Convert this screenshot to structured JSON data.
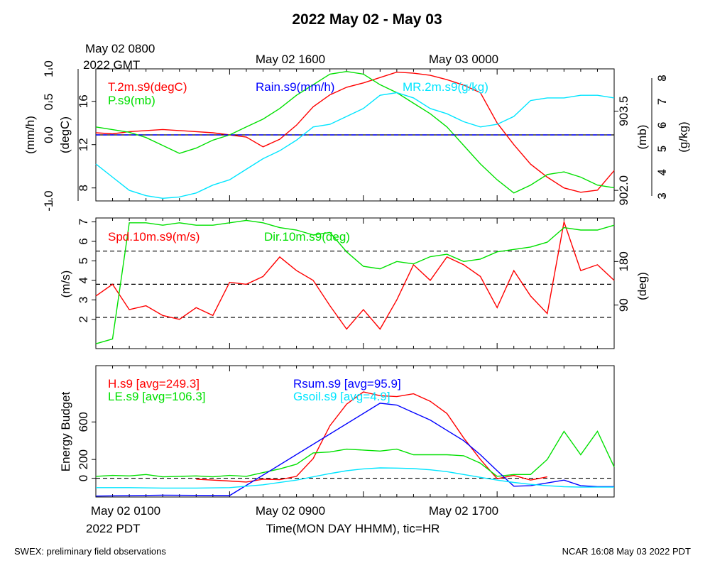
{
  "title": "2022 May 02 - May 03",
  "top_time_labels": {
    "utc_start_line1": "May 02 0800",
    "utc_start_line2": "2022 GMT",
    "utc_mid": "May 02 1600",
    "utc_end": "May 03 0000"
  },
  "bottom_time_labels": {
    "pdt_start": "May 02 0100",
    "pdt_start_line2": "2022 PDT",
    "pdt_mid": "May 02 0900",
    "pdt_end": "May 02 1700",
    "xlabel": "Time(MON DAY HHMM), tic=HR"
  },
  "footer": {
    "left": "SWEX: preliminary field observations",
    "right": "NCAR 16:08 May 03 2022 PDT"
  },
  "colors": {
    "red": "#ff0000",
    "green": "#00e000",
    "blue": "#0000ff",
    "cyan": "#00e5ff",
    "black": "#000000"
  },
  "chart_data": [
    {
      "type": "line",
      "panel": "top",
      "x_unit": "hours since May 02 0100 PDT",
      "xlim": [
        0,
        31
      ],
      "axes": {
        "left_outer": {
          "label": "(mm/h)",
          "ticks": [
            "-1.0",
            "0.0",
            "0.5",
            "1.0"
          ],
          "ylim": [
            -1,
            1
          ]
        },
        "left_inner": {
          "label": "(degC)",
          "ticks": [
            "8",
            "12",
            "16"
          ],
          "ylim": [
            6.8,
            19.0
          ]
        },
        "right_inner": {
          "label": "(mb)",
          "ticks": [
            "902.0",
            "903.5"
          ],
          "ylim": [
            901.8,
            904.3
          ]
        },
        "right_outer": {
          "label": "(g/kg)",
          "ticks": [
            "3",
            "4",
            "5",
            "6",
            "7",
            "8"
          ],
          "ylim": [
            3,
            8
          ]
        }
      },
      "series": [
        {
          "name": "T.2m.s9(degC)",
          "axis": "left_inner",
          "color": "red",
          "x": [
            0,
            1,
            2,
            3,
            4,
            5,
            6,
            7,
            8,
            9,
            10,
            11,
            12,
            13,
            14,
            15,
            16,
            17,
            18,
            19,
            20,
            21,
            22,
            23,
            24,
            25,
            26,
            27,
            28,
            29,
            30,
            31
          ],
          "y": [
            13.1,
            13.0,
            13.2,
            13.3,
            13.4,
            13.3,
            13.2,
            13.1,
            12.9,
            12.7,
            11.8,
            12.5,
            13.8,
            15.5,
            16.6,
            17.3,
            17.7,
            18.2,
            18.7,
            18.6,
            18.4,
            18.0,
            17.5,
            16.8,
            14.0,
            12.0,
            10.2,
            9.0,
            8.0,
            7.6,
            7.8,
            9.6
          ]
        },
        {
          "name": "P.s9(mb)",
          "axis": "right_inner",
          "color": "green",
          "x": [
            0,
            1,
            2,
            3,
            4,
            5,
            6,
            7,
            8,
            9,
            10,
            11,
            12,
            13,
            14,
            15,
            16,
            17,
            18,
            19,
            20,
            21,
            22,
            23,
            24,
            25,
            26,
            27,
            28,
            29,
            30,
            31
          ],
          "y": [
            903.2,
            903.15,
            903.1,
            903.0,
            902.85,
            902.7,
            902.8,
            902.95,
            903.05,
            903.2,
            903.35,
            903.55,
            903.8,
            904.0,
            904.2,
            904.25,
            904.2,
            904.0,
            903.85,
            903.65,
            903.45,
            903.2,
            902.85,
            902.5,
            902.2,
            901.95,
            902.1,
            902.3,
            902.35,
            902.25,
            902.1,
            902.05
          ]
        },
        {
          "name": "Rain.s9(mm/h)",
          "axis": "left_outer",
          "color": "blue",
          "x": [
            0,
            31
          ],
          "y": [
            0.0,
            0.0
          ]
        },
        {
          "name": "MR.2m.s9(g/kg)",
          "axis": "right_outer",
          "color": "cyan",
          "x": [
            0,
            1,
            2,
            3,
            4,
            5,
            6,
            7,
            8,
            9,
            10,
            11,
            12,
            13,
            14,
            15,
            16,
            17,
            18,
            19,
            20,
            21,
            22,
            23,
            24,
            25,
            26,
            27,
            28,
            29,
            30,
            31
          ],
          "y": [
            4.4,
            3.9,
            3.4,
            3.2,
            3.1,
            3.15,
            3.3,
            3.6,
            3.8,
            4.2,
            4.6,
            4.9,
            5.3,
            5.8,
            5.9,
            6.2,
            6.5,
            7.0,
            7.1,
            6.9,
            6.5,
            6.3,
            6.0,
            5.8,
            5.9,
            6.2,
            6.8,
            6.9,
            6.9,
            7.0,
            7.0,
            6.9
          ]
        }
      ]
    },
    {
      "type": "line",
      "panel": "middle",
      "x_unit": "hours since May 02 0100 PDT",
      "xlim": [
        0,
        31
      ],
      "axes": {
        "left": {
          "label": "(m/s)",
          "ticks": [
            "2",
            "3",
            "4",
            "5",
            "6",
            "7"
          ],
          "ylim": [
            0.5,
            7.2
          ]
        },
        "right": {
          "label": "(deg)",
          "ticks": [
            "90",
            "180"
          ],
          "ylim": [
            0,
            270
          ]
        }
      },
      "reference_lines_left": [
        2.1,
        3.8,
        5.5
      ],
      "series": [
        {
          "name": "Spd.10m.s9(m/s)",
          "axis": "left",
          "color": "red",
          "x": [
            0,
            1,
            2,
            3,
            4,
            5,
            6,
            7,
            8,
            9,
            10,
            11,
            12,
            13,
            14,
            15,
            16,
            17,
            18,
            19,
            20,
            21,
            22,
            23,
            24,
            25,
            26,
            27,
            28,
            29,
            30,
            31
          ],
          "y": [
            3.2,
            3.8,
            2.5,
            2.7,
            2.2,
            2.0,
            2.6,
            2.2,
            3.9,
            3.8,
            4.2,
            5.2,
            4.5,
            4.0,
            2.7,
            1.5,
            2.5,
            1.5,
            3.0,
            4.8,
            4.0,
            5.2,
            4.8,
            4.2,
            2.6,
            4.5,
            3.2,
            2.3,
            7.0,
            4.5,
            4.8,
            4.0
          ]
        },
        {
          "name": "Dir.10m.s9(deg)",
          "axis": "right",
          "color": "green",
          "x": [
            0,
            1,
            2,
            3,
            4,
            5,
            6,
            7,
            8,
            9,
            10,
            11,
            12,
            13,
            14,
            15,
            16,
            17,
            18,
            19,
            20,
            21,
            22,
            23,
            24,
            25,
            26,
            27,
            28,
            29,
            30,
            31
          ],
          "y": [
            10,
            20,
            260,
            260,
            255,
            260,
            255,
            255,
            260,
            265,
            260,
            250,
            245,
            235,
            240,
            200,
            170,
            165,
            180,
            175,
            190,
            195,
            180,
            185,
            200,
            205,
            210,
            220,
            250,
            245,
            245,
            255
          ]
        }
      ]
    },
    {
      "type": "line",
      "panel": "bottom",
      "x_unit": "hours since May 02 0100 PDT",
      "xlim": [
        0,
        31
      ],
      "ylabel": "Energy Budget",
      "yticks": [
        "0",
        "200",
        "600"
      ],
      "ylim": [
        -200,
        1200
      ],
      "reference_lines": [
        0
      ],
      "series": [
        {
          "name": "H.s9 [avg=249.3]",
          "color": "red",
          "x": [
            6,
            7,
            8,
            9,
            10,
            11,
            12,
            13,
            14,
            15,
            16,
            17,
            18,
            19,
            20,
            21,
            22,
            23,
            24,
            25,
            26,
            27
          ],
          "y": [
            -10,
            -20,
            -30,
            -40,
            -10,
            -15,
            20,
            210,
            560,
            790,
            920,
            880,
            870,
            900,
            820,
            690,
            430,
            200,
            -5,
            30,
            -20,
            15
          ]
        },
        {
          "name": "LE.s9 [avg=106.3]",
          "color": "green",
          "x": [
            0,
            1,
            2,
            3,
            4,
            5,
            6,
            7,
            8,
            9,
            10,
            11,
            12,
            13,
            14,
            15,
            16,
            17,
            18,
            19,
            20,
            21,
            22,
            23,
            24,
            25,
            26,
            27,
            28,
            29,
            30,
            31
          ],
          "y": [
            20,
            30,
            25,
            40,
            15,
            20,
            25,
            15,
            30,
            20,
            60,
            100,
            150,
            270,
            280,
            310,
            300,
            290,
            310,
            250,
            250,
            250,
            240,
            160,
            20,
            40,
            40,
            200,
            500,
            250,
            500,
            120
          ]
        },
        {
          "name": "Rsum.s9 [avg=95.9]",
          "color": "blue",
          "x": [
            0,
            4,
            8,
            17,
            18,
            19,
            20,
            21,
            22,
            23,
            24,
            25,
            26,
            27,
            28,
            29,
            30,
            31
          ],
          "y": [
            -190,
            -180,
            -185,
            800,
            780,
            700,
            620,
            510,
            400,
            250,
            80,
            -85,
            -80,
            -50,
            -20,
            -80,
            -90,
            -90
          ]
        },
        {
          "name": "Gsoil.s9 [avg=4.9]",
          "color": "cyan",
          "x": [
            0,
            2,
            4,
            6,
            8,
            10,
            12,
            13,
            14,
            15,
            16,
            17,
            18,
            19,
            20,
            21,
            22,
            23,
            24,
            25,
            26,
            27,
            28,
            29,
            30,
            31
          ],
          "y": [
            -100,
            -100,
            -105,
            -105,
            -100,
            -70,
            -20,
            15,
            50,
            80,
            100,
            110,
            108,
            103,
            90,
            70,
            40,
            10,
            -20,
            -45,
            -65,
            -80,
            -90,
            -95,
            -95,
            -95
          ]
        }
      ]
    }
  ]
}
